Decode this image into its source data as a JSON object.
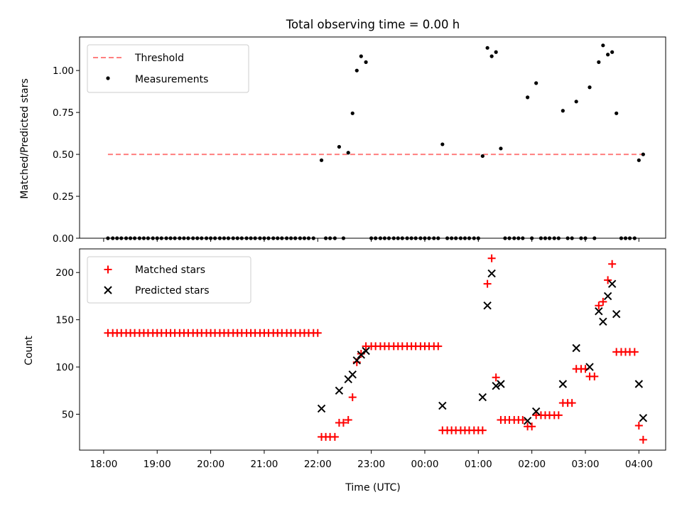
{
  "chart_data": [
    {
      "type": "scatter",
      "title": "Total observing time = 0.00 h",
      "xlabel": "",
      "ylabel": "Matched/Predicted stars",
      "x_unit": "hours since 18:00 UTC",
      "xlim": [
        -0.45,
        10.5
      ],
      "ylim": [
        0,
        1.2
      ],
      "yticks": [
        0.0,
        0.25,
        0.5,
        0.75,
        1.0
      ],
      "ytick_labels": [
        "0.00",
        "0.25",
        "0.50",
        "0.75",
        "1.00"
      ],
      "legend": {
        "position": "top-left",
        "entries": [
          "Threshold",
          "Measurements"
        ]
      },
      "series": [
        {
          "name": "Threshold",
          "kind": "line",
          "style": "dashed",
          "color": "#ff7f7f",
          "x": [
            0.08,
            10.08
          ],
          "y": [
            0.5,
            0.5
          ]
        },
        {
          "name": "Measurements",
          "kind": "points",
          "color": "#000000",
          "points": [
            [
              0.08,
              0
            ],
            [
              0.17,
              0
            ],
            [
              0.25,
              0
            ],
            [
              0.33,
              0
            ],
            [
              0.42,
              0
            ],
            [
              0.5,
              0
            ],
            [
              0.58,
              0
            ],
            [
              0.67,
              0
            ],
            [
              0.75,
              0
            ],
            [
              0.83,
              0
            ],
            [
              0.92,
              0
            ],
            [
              1.0,
              0
            ],
            [
              1.08,
              0
            ],
            [
              1.17,
              0
            ],
            [
              1.25,
              0
            ],
            [
              1.33,
              0
            ],
            [
              1.42,
              0
            ],
            [
              1.5,
              0
            ],
            [
              1.58,
              0
            ],
            [
              1.67,
              0
            ],
            [
              1.75,
              0
            ],
            [
              1.83,
              0
            ],
            [
              1.92,
              0
            ],
            [
              2.0,
              0
            ],
            [
              2.08,
              0
            ],
            [
              2.17,
              0
            ],
            [
              2.25,
              0
            ],
            [
              2.33,
              0
            ],
            [
              2.42,
              0
            ],
            [
              2.5,
              0
            ],
            [
              2.58,
              0
            ],
            [
              2.67,
              0
            ],
            [
              2.75,
              0
            ],
            [
              2.83,
              0
            ],
            [
              2.92,
              0
            ],
            [
              3.0,
              0
            ],
            [
              3.08,
              0
            ],
            [
              3.17,
              0
            ],
            [
              3.25,
              0
            ],
            [
              3.33,
              0
            ],
            [
              3.42,
              0
            ],
            [
              3.5,
              0
            ],
            [
              3.58,
              0
            ],
            [
              3.67,
              0
            ],
            [
              3.75,
              0
            ],
            [
              3.83,
              0
            ],
            [
              3.92,
              0
            ],
            [
              4.07,
              0.465
            ],
            [
              4.15,
              0
            ],
            [
              4.23,
              0
            ],
            [
              4.32,
              0
            ],
            [
              4.4,
              0.545
            ],
            [
              4.48,
              0
            ],
            [
              4.57,
              0.51
            ],
            [
              4.65,
              0.745
            ],
            [
              4.73,
              1.0
            ],
            [
              4.81,
              1.085
            ],
            [
              4.9,
              1.05
            ],
            [
              5.0,
              0
            ],
            [
              5.08,
              0
            ],
            [
              5.17,
              0
            ],
            [
              5.25,
              0
            ],
            [
              5.33,
              0
            ],
            [
              5.42,
              0
            ],
            [
              5.5,
              0
            ],
            [
              5.58,
              0
            ],
            [
              5.67,
              0
            ],
            [
              5.75,
              0
            ],
            [
              5.83,
              0
            ],
            [
              5.92,
              0
            ],
            [
              6.0,
              0
            ],
            [
              6.08,
              0
            ],
            [
              6.17,
              0
            ],
            [
              6.25,
              0
            ],
            [
              6.33,
              0.56
            ],
            [
              6.42,
              0
            ],
            [
              6.5,
              0
            ],
            [
              6.58,
              0
            ],
            [
              6.67,
              0
            ],
            [
              6.75,
              0
            ],
            [
              6.83,
              0
            ],
            [
              6.92,
              0
            ],
            [
              7.0,
              0
            ],
            [
              7.08,
              0.49
            ],
            [
              7.17,
              1.135
            ],
            [
              7.25,
              1.085
            ],
            [
              7.33,
              1.11
            ],
            [
              7.42,
              0.535
            ],
            [
              7.5,
              0
            ],
            [
              7.58,
              0
            ],
            [
              7.67,
              0
            ],
            [
              7.75,
              0
            ],
            [
              7.83,
              0
            ],
            [
              7.92,
              0.84
            ],
            [
              8.08,
              0.925
            ],
            [
              8.0,
              0
            ],
            [
              8.17,
              0
            ],
            [
              8.25,
              0
            ],
            [
              8.33,
              0
            ],
            [
              8.42,
              0
            ],
            [
              8.5,
              0
            ],
            [
              8.58,
              0.76
            ],
            [
              8.67,
              0
            ],
            [
              8.75,
              0
            ],
            [
              8.83,
              0.815
            ],
            [
              8.92,
              0
            ],
            [
              9.0,
              0
            ],
            [
              9.08,
              0.9
            ],
            [
              9.17,
              0
            ],
            [
              9.25,
              1.05
            ],
            [
              9.33,
              1.15
            ],
            [
              9.42,
              1.095
            ],
            [
              9.5,
              1.11
            ],
            [
              9.58,
              0.745
            ],
            [
              9.67,
              0
            ],
            [
              9.75,
              0
            ],
            [
              9.83,
              0
            ],
            [
              9.92,
              0
            ],
            [
              10.0,
              0.465
            ],
            [
              10.08,
              0.5
            ]
          ]
        }
      ]
    },
    {
      "type": "scatter",
      "title": "",
      "xlabel": "Time (UTC)",
      "ylabel": "Count",
      "x_unit": "hours since 18:00 UTC",
      "xlim": [
        -0.45,
        10.5
      ],
      "ylim": [
        12,
        225
      ],
      "xticks": [
        0,
        1,
        2,
        3,
        4,
        5,
        6,
        7,
        8,
        9,
        10
      ],
      "xtick_labels": [
        "18:00",
        "19:00",
        "20:00",
        "21:00",
        "22:00",
        "23:00",
        "00:00",
        "01:00",
        "02:00",
        "03:00",
        "04:00"
      ],
      "yticks": [
        50,
        100,
        150,
        200
      ],
      "ytick_labels": [
        "50",
        "100",
        "150",
        "200"
      ],
      "legend": {
        "position": "top-left",
        "entries": [
          "Matched stars",
          "Predicted stars"
        ]
      },
      "series": [
        {
          "name": "Matched stars",
          "kind": "plus",
          "color": "#ff0000",
          "points": [
            [
              0.08,
              136
            ],
            [
              0.17,
              136
            ],
            [
              0.25,
              136
            ],
            [
              0.33,
              136
            ],
            [
              0.42,
              136
            ],
            [
              0.5,
              136
            ],
            [
              0.58,
              136
            ],
            [
              0.67,
              136
            ],
            [
              0.75,
              136
            ],
            [
              0.83,
              136
            ],
            [
              0.92,
              136
            ],
            [
              1.0,
              136
            ],
            [
              1.08,
              136
            ],
            [
              1.17,
              136
            ],
            [
              1.25,
              136
            ],
            [
              1.33,
              136
            ],
            [
              1.42,
              136
            ],
            [
              1.5,
              136
            ],
            [
              1.58,
              136
            ],
            [
              1.67,
              136
            ],
            [
              1.75,
              136
            ],
            [
              1.83,
              136
            ],
            [
              1.92,
              136
            ],
            [
              2.0,
              136
            ],
            [
              2.08,
              136
            ],
            [
              2.17,
              136
            ],
            [
              2.25,
              136
            ],
            [
              2.33,
              136
            ],
            [
              2.42,
              136
            ],
            [
              2.5,
              136
            ],
            [
              2.58,
              136
            ],
            [
              2.67,
              136
            ],
            [
              2.75,
              136
            ],
            [
              2.83,
              136
            ],
            [
              2.92,
              136
            ],
            [
              3.0,
              136
            ],
            [
              3.08,
              136
            ],
            [
              3.17,
              136
            ],
            [
              3.25,
              136
            ],
            [
              3.33,
              136
            ],
            [
              3.42,
              136
            ],
            [
              3.5,
              136
            ],
            [
              3.58,
              136
            ],
            [
              3.67,
              136
            ],
            [
              3.75,
              136
            ],
            [
              3.83,
              136
            ],
            [
              3.92,
              136
            ],
            [
              4.0,
              136
            ],
            [
              4.07,
              26
            ],
            [
              4.15,
              26
            ],
            [
              4.23,
              26
            ],
            [
              4.32,
              26
            ],
            [
              4.4,
              41
            ],
            [
              4.48,
              41
            ],
            [
              4.57,
              44
            ],
            [
              4.65,
              68
            ],
            [
              4.73,
              105
            ],
            [
              4.81,
              114
            ],
            [
              4.9,
              122
            ],
            [
              5.0,
              122
            ],
            [
              5.08,
              122
            ],
            [
              5.17,
              122
            ],
            [
              5.25,
              122
            ],
            [
              5.33,
              122
            ],
            [
              5.42,
              122
            ],
            [
              5.5,
              122
            ],
            [
              5.58,
              122
            ],
            [
              5.67,
              122
            ],
            [
              5.75,
              122
            ],
            [
              5.83,
              122
            ],
            [
              5.92,
              122
            ],
            [
              6.0,
              122
            ],
            [
              6.08,
              122
            ],
            [
              6.17,
              122
            ],
            [
              6.25,
              122
            ],
            [
              6.33,
              33
            ],
            [
              6.42,
              33
            ],
            [
              6.5,
              33
            ],
            [
              6.58,
              33
            ],
            [
              6.67,
              33
            ],
            [
              6.75,
              33
            ],
            [
              6.83,
              33
            ],
            [
              6.92,
              33
            ],
            [
              7.0,
              33
            ],
            [
              7.08,
              33
            ],
            [
              7.17,
              188
            ],
            [
              7.25,
              215
            ],
            [
              7.33,
              89
            ],
            [
              7.42,
              44
            ],
            [
              7.5,
              44
            ],
            [
              7.58,
              44
            ],
            [
              7.67,
              44
            ],
            [
              7.75,
              44
            ],
            [
              7.83,
              44
            ],
            [
              7.92,
              37
            ],
            [
              8.0,
              37
            ],
            [
              8.08,
              49
            ],
            [
              8.17,
              49
            ],
            [
              8.25,
              49
            ],
            [
              8.33,
              49
            ],
            [
              8.42,
              49
            ],
            [
              8.5,
              49
            ],
            [
              8.58,
              62
            ],
            [
              8.67,
              62
            ],
            [
              8.75,
              62
            ],
            [
              8.83,
              98
            ],
            [
              8.92,
              98
            ],
            [
              9.0,
              98
            ],
            [
              9.08,
              90
            ],
            [
              9.17,
              90
            ],
            [
              9.25,
              165
            ],
            [
              9.33,
              169
            ],
            [
              9.42,
              192
            ],
            [
              9.5,
              209
            ],
            [
              9.58,
              116
            ],
            [
              9.67,
              116
            ],
            [
              9.75,
              116
            ],
            [
              9.83,
              116
            ],
            [
              9.92,
              116
            ],
            [
              10.0,
              38
            ],
            [
              10.08,
              23
            ]
          ]
        },
        {
          "name": "Predicted stars",
          "kind": "x",
          "color": "#000000",
          "points": [
            [
              4.07,
              56
            ],
            [
              4.4,
              75
            ],
            [
              4.57,
              87
            ],
            [
              4.65,
              92
            ],
            [
              4.73,
              107
            ],
            [
              4.81,
              113
            ],
            [
              4.9,
              117
            ],
            [
              6.33,
              59
            ],
            [
              7.08,
              68
            ],
            [
              7.17,
              165
            ],
            [
              7.25,
              199
            ],
            [
              7.33,
              80
            ],
            [
              7.42,
              82
            ],
            [
              7.92,
              43
            ],
            [
              8.08,
              53
            ],
            [
              8.58,
              82
            ],
            [
              8.83,
              120
            ],
            [
              9.08,
              100
            ],
            [
              9.25,
              159
            ],
            [
              9.33,
              148
            ],
            [
              9.42,
              175
            ],
            [
              9.5,
              188
            ],
            [
              9.58,
              156
            ],
            [
              10.0,
              82
            ],
            [
              10.08,
              46
            ]
          ]
        }
      ]
    }
  ]
}
